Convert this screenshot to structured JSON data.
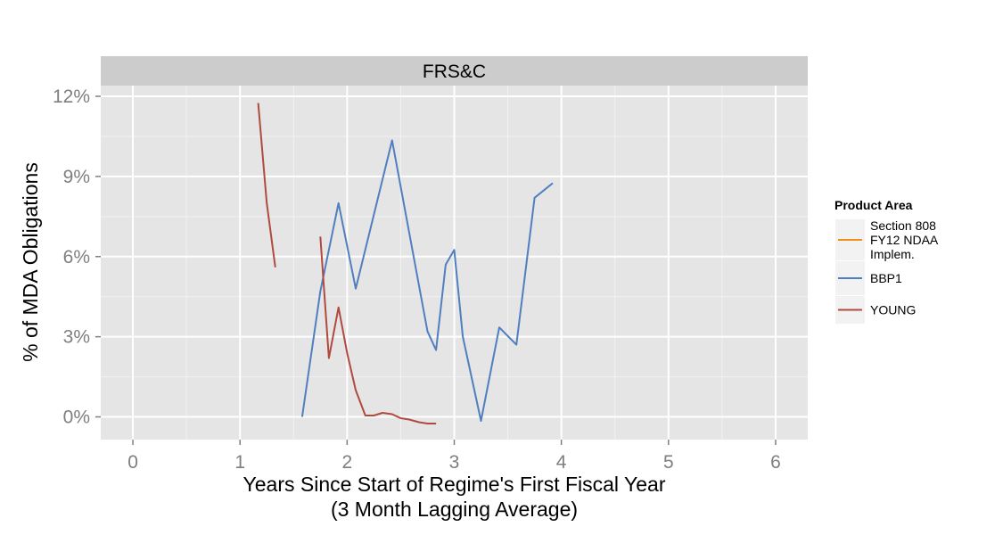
{
  "chart_data": {
    "type": "line",
    "panel_title": "FRS&C",
    "xlabel_line1": "Years Since Start of Regime's First Fiscal Year",
    "xlabel_line2": "(3 Month Lagging Average)",
    "ylabel": "% of MDA Obligations",
    "xlim": [
      -0.3,
      6.3
    ],
    "ylim": [
      -0.85,
      12.4
    ],
    "x_ticks": [
      0,
      1,
      2,
      3,
      4,
      5,
      6
    ],
    "x_tick_labels": [
      "0",
      "1",
      "2",
      "3",
      "4",
      "5",
      "6"
    ],
    "y_ticks": [
      0,
      3,
      6,
      9,
      12
    ],
    "y_tick_labels": [
      "0%",
      "3%",
      "6%",
      "9%",
      "12%"
    ],
    "grid": true,
    "legend_position": "right",
    "legend_title": "Product Area",
    "legend": [
      {
        "label_lines": [
          "Section 808",
          "FY12 NDAA",
          "Implem."
        ],
        "color": "#f28e1b"
      },
      {
        "label_lines": [
          "BBP1"
        ],
        "color": "#4f7fbf"
      },
      {
        "label_lines": [
          "YOUNG"
        ],
        "color": "#b04a3f"
      }
    ],
    "series": [
      {
        "name": "Section 808 FY12 NDAA Implem.",
        "color": "#f28e1b",
        "points": []
      },
      {
        "name": "BBP1",
        "color": "#4f7fbf",
        "points": [
          [
            1.58,
            0.0
          ],
          [
            1.75,
            4.7
          ],
          [
            1.92,
            8.0
          ],
          [
            2.08,
            4.8
          ],
          [
            2.42,
            10.35
          ],
          [
            2.75,
            3.2
          ],
          [
            2.83,
            2.5
          ],
          [
            2.92,
            5.7
          ],
          [
            3.0,
            6.25
          ],
          [
            3.08,
            3.0
          ],
          [
            3.25,
            -0.15
          ],
          [
            3.42,
            3.35
          ],
          [
            3.58,
            2.7
          ],
          [
            3.75,
            8.2
          ],
          [
            3.92,
            8.75
          ]
        ]
      },
      {
        "name": "YOUNG",
        "color": "#b04a3f",
        "segments": [
          [
            [
              1.17,
              11.75
            ],
            [
              1.25,
              8.0
            ],
            [
              1.33,
              5.6
            ]
          ],
          [
            [
              1.75,
              6.75
            ],
            [
              1.83,
              2.2
            ],
            [
              1.92,
              4.1
            ],
            [
              2.0,
              2.4
            ],
            [
              2.08,
              1.0
            ],
            [
              2.17,
              0.05
            ],
            [
              2.25,
              0.05
            ],
            [
              2.33,
              0.15
            ],
            [
              2.42,
              0.1
            ],
            [
              2.5,
              -0.05
            ],
            [
              2.58,
              -0.1
            ],
            [
              2.67,
              -0.2
            ],
            [
              2.75,
              -0.25
            ],
            [
              2.83,
              -0.25
            ]
          ]
        ]
      }
    ]
  }
}
